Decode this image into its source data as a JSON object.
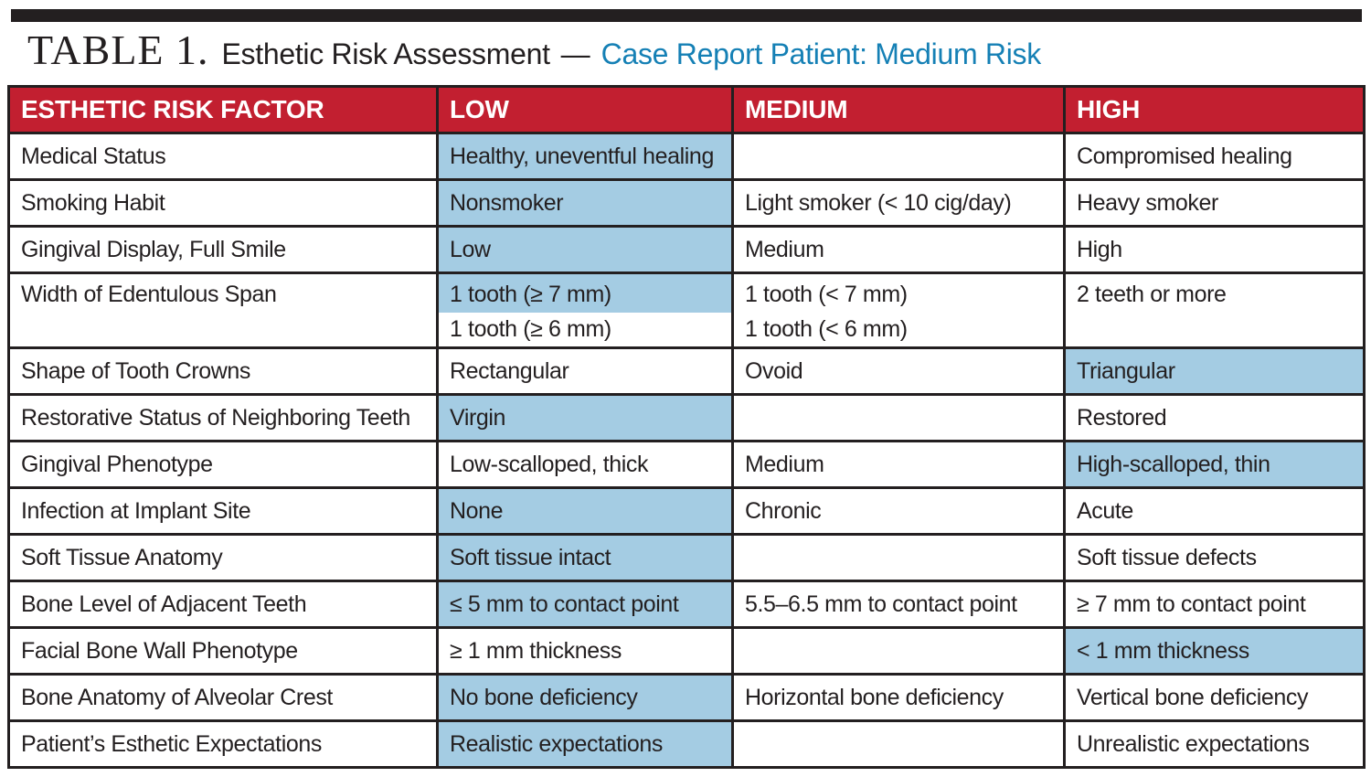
{
  "colors": {
    "header_bg": "#c21f30",
    "highlight": "#a4cce3",
    "accent": "#1580b5",
    "ink": "#231f20",
    "border": "#231f20",
    "bar": "#231f20"
  },
  "title": {
    "label": "TABLE 1.",
    "heading": "Esthetic Risk Assessment",
    "separator": "—",
    "case": "Case Report Patient: Medium Risk"
  },
  "table": {
    "headers": [
      "ESTHETIC RISK FACTOR",
      "LOW",
      "MEDIUM",
      "HIGH"
    ],
    "rows": [
      {
        "factor": "Medical Status",
        "low": {
          "lines": [
            "Healthy, uneventful healing"
          ],
          "highlight": "full"
        },
        "medium": {
          "lines": [],
          "highlight": "none"
        },
        "high": {
          "lines": [
            "Compromised healing"
          ],
          "highlight": "none"
        }
      },
      {
        "factor": "Smoking Habit",
        "low": {
          "lines": [
            "Nonsmoker"
          ],
          "highlight": "full"
        },
        "medium": {
          "lines": [
            "Light smoker (< 10 cig/day)"
          ],
          "highlight": "none"
        },
        "high": {
          "lines": [
            "Heavy smoker"
          ],
          "highlight": "none"
        }
      },
      {
        "factor": "Gingival Display, Full Smile",
        "low": {
          "lines": [
            "Low"
          ],
          "highlight": "full"
        },
        "medium": {
          "lines": [
            "Medium"
          ],
          "highlight": "none"
        },
        "high": {
          "lines": [
            "High"
          ],
          "highlight": "none"
        }
      },
      {
        "factor": "Width of Edentulous Span",
        "tall": true,
        "low": {
          "lines": [
            "1 tooth (≥ 7 mm)",
            "1 tooth (≥ 6 mm)"
          ],
          "highlight": "first-line"
        },
        "medium": {
          "lines": [
            "1 tooth (< 7 mm)",
            "1 tooth (< 6 mm)"
          ],
          "highlight": "none"
        },
        "high": {
          "lines": [
            "2 teeth or more"
          ],
          "highlight": "none"
        }
      },
      {
        "factor": "Shape of Tooth Crowns",
        "low": {
          "lines": [
            "Rectangular"
          ],
          "highlight": "none"
        },
        "medium": {
          "lines": [
            "Ovoid"
          ],
          "highlight": "none"
        },
        "high": {
          "lines": [
            "Triangular"
          ],
          "highlight": "full"
        }
      },
      {
        "factor": "Restorative Status of Neighboring Teeth",
        "low": {
          "lines": [
            "Virgin"
          ],
          "highlight": "full"
        },
        "medium": {
          "lines": [],
          "highlight": "none"
        },
        "high": {
          "lines": [
            "Restored"
          ],
          "highlight": "none"
        }
      },
      {
        "factor": "Gingival Phenotype",
        "low": {
          "lines": [
            "Low-scalloped, thick"
          ],
          "highlight": "none"
        },
        "medium": {
          "lines": [
            "Medium"
          ],
          "highlight": "none"
        },
        "high": {
          "lines": [
            "High-scalloped, thin"
          ],
          "highlight": "full"
        }
      },
      {
        "factor": "Infection at Implant Site",
        "low": {
          "lines": [
            "None"
          ],
          "highlight": "full"
        },
        "medium": {
          "lines": [
            "Chronic"
          ],
          "highlight": "none"
        },
        "high": {
          "lines": [
            "Acute"
          ],
          "highlight": "none"
        }
      },
      {
        "factor": "Soft Tissue Anatomy",
        "low": {
          "lines": [
            "Soft tissue intact"
          ],
          "highlight": "full"
        },
        "medium": {
          "lines": [],
          "highlight": "none"
        },
        "high": {
          "lines": [
            "Soft tissue defects"
          ],
          "highlight": "none"
        }
      },
      {
        "factor": "Bone Level of Adjacent Teeth",
        "low": {
          "lines": [
            "≤ 5 mm to contact point"
          ],
          "highlight": "full"
        },
        "medium": {
          "lines": [
            "5.5–6.5 mm to contact point"
          ],
          "highlight": "none"
        },
        "high": {
          "lines": [
            "≥ 7 mm to contact point"
          ],
          "highlight": "none"
        }
      },
      {
        "factor": "Facial Bone Wall Phenotype",
        "low": {
          "lines": [
            "≥ 1 mm thickness"
          ],
          "highlight": "none"
        },
        "medium": {
          "lines": [],
          "highlight": "none"
        },
        "high": {
          "lines": [
            "< 1 mm thickness"
          ],
          "highlight": "full"
        }
      },
      {
        "factor": "Bone Anatomy of Alveolar Crest",
        "low": {
          "lines": [
            "No bone deficiency"
          ],
          "highlight": "full"
        },
        "medium": {
          "lines": [
            "Horizontal bone deficiency"
          ],
          "highlight": "none"
        },
        "high": {
          "lines": [
            "Vertical bone deficiency"
          ],
          "highlight": "none"
        }
      },
      {
        "factor": "Patient’s Esthetic Expectations",
        "low": {
          "lines": [
            "Realistic expectations"
          ],
          "highlight": "full"
        },
        "medium": {
          "lines": [],
          "highlight": "none"
        },
        "high": {
          "lines": [
            "Unrealistic expectations"
          ],
          "highlight": "none"
        }
      }
    ]
  }
}
